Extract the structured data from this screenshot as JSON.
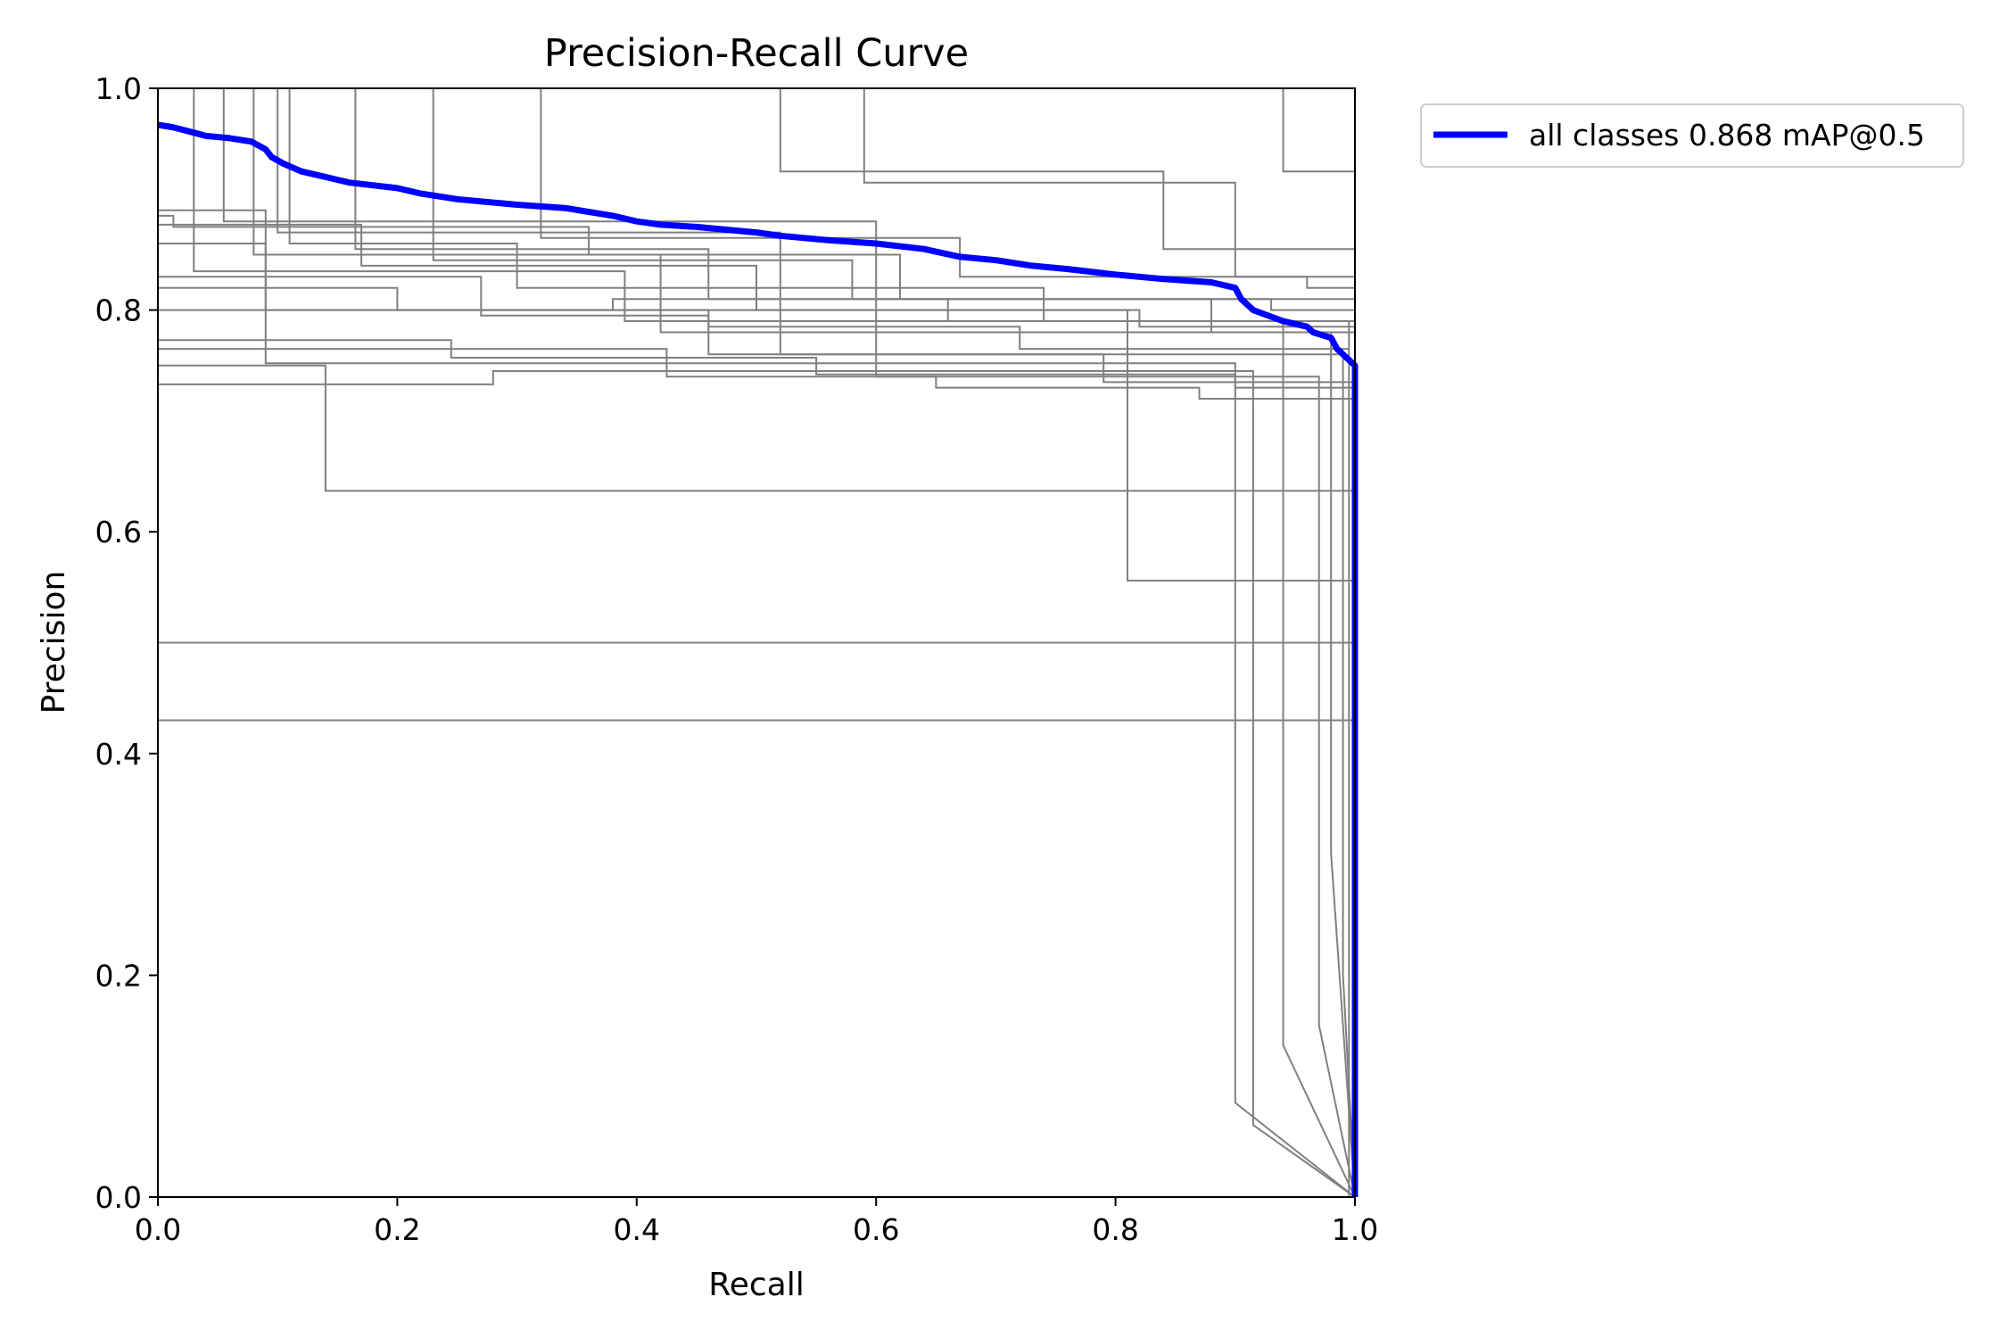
{
  "chart_data": {
    "type": "line",
    "title": "Precision-Recall Curve",
    "xlabel": "Recall",
    "ylabel": "Precision",
    "xlim": [
      0,
      1
    ],
    "ylim": [
      0,
      1
    ],
    "xticks": [
      "0.0",
      "0.2",
      "0.4",
      "0.6",
      "0.8",
      "1.0"
    ],
    "yticks": [
      "0.0",
      "0.2",
      "0.4",
      "0.6",
      "0.8",
      "1.0"
    ],
    "grid": false,
    "legend_position": "outside-top-right",
    "colors": {
      "per_class": "#808080",
      "all_classes": "#0000ff"
    },
    "series": [
      {
        "name": "all classes 0.868 mAP@0.5",
        "color": "#0000ff",
        "x": [
          0.0,
          0.012,
          0.03,
          0.04,
          0.06,
          0.078,
          0.09,
          0.095,
          0.105,
          0.12,
          0.14,
          0.16,
          0.2,
          0.22,
          0.25,
          0.27,
          0.3,
          0.34,
          0.38,
          0.4,
          0.42,
          0.45,
          0.5,
          0.52,
          0.56,
          0.6,
          0.64,
          0.67,
          0.7,
          0.73,
          0.76,
          0.8,
          0.84,
          0.88,
          0.9,
          0.905,
          0.915,
          0.94,
          0.96,
          0.965,
          0.98,
          0.985,
          0.99,
          0.995,
          1.0,
          1.0
        ],
        "y": [
          0.967,
          0.965,
          0.96,
          0.957,
          0.955,
          0.952,
          0.945,
          0.938,
          0.932,
          0.925,
          0.92,
          0.915,
          0.91,
          0.905,
          0.9,
          0.898,
          0.895,
          0.892,
          0.885,
          0.88,
          0.877,
          0.875,
          0.87,
          0.867,
          0.863,
          0.86,
          0.855,
          0.848,
          0.845,
          0.84,
          0.837,
          0.832,
          0.828,
          0.825,
          0.82,
          0.81,
          0.8,
          0.79,
          0.785,
          0.78,
          0.775,
          0.765,
          0.76,
          0.755,
          0.75,
          0.0
        ]
      }
    ],
    "per_class_curves": [
      {
        "x": [
          0,
          0.14,
          0.14,
          1.0,
          1.0
        ],
        "y": [
          0.75,
          0.75,
          0.637,
          0.637,
          0.0
        ]
      },
      {
        "x": [
          0,
          1.0,
          1.0
        ],
        "y": [
          0.5,
          0.5,
          0.0
        ]
      },
      {
        "x": [
          0,
          1.0,
          1.0
        ],
        "y": [
          0.43,
          0.43,
          0.0
        ]
      },
      {
        "x": [
          0,
          0.81,
          0.81,
          1.0,
          1.0
        ],
        "y": [
          0.8,
          0.8,
          0.556,
          0.556,
          0.0
        ]
      },
      {
        "x": [
          0,
          0.09,
          0.09,
          0.9,
          0.9,
          1.0
        ],
        "y": [
          0.89,
          0.89,
          0.752,
          0.752,
          0.085,
          0.0
        ]
      },
      {
        "x": [
          0,
          0.0,
          0.28,
          0.28,
          0.915,
          0.915,
          1.0
        ],
        "y": [
          1.0,
          0.733,
          0.733,
          0.745,
          0.745,
          0.065,
          0.0
        ]
      },
      {
        "x": [
          0,
          0.03,
          0.03,
          0.39,
          0.39,
          0.94,
          0.94,
          1.0
        ],
        "y": [
          1.0,
          1.0,
          0.835,
          0.835,
          0.79,
          0.79,
          0.137,
          0.0
        ]
      },
      {
        "x": [
          0,
          0.055,
          0.055,
          0.6,
          0.6,
          0.97,
          0.97,
          1.0
        ],
        "y": [
          1.0,
          1.0,
          0.88,
          0.88,
          0.74,
          0.74,
          0.155,
          0.0
        ]
      },
      {
        "x": [
          0,
          0.08,
          0.08,
          0.42,
          0.42,
          0.98,
          0.98,
          1.0
        ],
        "y": [
          1.0,
          1.0,
          0.85,
          0.85,
          0.78,
          0.78,
          0.31,
          0.0
        ]
      },
      {
        "x": [
          0,
          0.1,
          0.1,
          0.52,
          0.52,
          0.99,
          0.99,
          1.0
        ],
        "y": [
          1.0,
          1.0,
          0.87,
          0.87,
          0.76,
          0.76,
          0.2,
          0.0
        ]
      },
      {
        "x": [
          0,
          0.11,
          0.11,
          0.3,
          0.3,
          0.74,
          0.74,
          0.995,
          0.995
        ],
        "y": [
          1.0,
          1.0,
          0.86,
          0.86,
          0.82,
          0.82,
          0.79,
          0.79,
          0.0
        ]
      },
      {
        "x": [
          0,
          0.165,
          0.165,
          0.46,
          0.46,
          0.88,
          0.88,
          1.0
        ],
        "y": [
          1.0,
          1.0,
          0.855,
          0.855,
          0.81,
          0.81,
          0.78,
          0.78
        ]
      },
      {
        "x": [
          0,
          0.23,
          0.23,
          0.58,
          0.58,
          0.93,
          0.93,
          1.0
        ],
        "y": [
          1.0,
          1.0,
          0.845,
          0.845,
          0.81,
          0.81,
          0.8,
          0.8
        ]
      },
      {
        "x": [
          0,
          0.32,
          0.32,
          0.67,
          0.67,
          0.96,
          0.96,
          1.0
        ],
        "y": [
          1.0,
          1.0,
          0.865,
          0.865,
          0.83,
          0.83,
          0.82,
          0.82
        ]
      },
      {
        "x": [
          0,
          0.52,
          0.52,
          0.84,
          0.84,
          1.0
        ],
        "y": [
          1.0,
          1.0,
          0.925,
          0.925,
          0.855,
          0.855
        ]
      },
      {
        "x": [
          0,
          0.59,
          0.59,
          0.9,
          0.9,
          1.0
        ],
        "y": [
          1.0,
          1.0,
          0.915,
          0.915,
          0.83,
          0.83
        ]
      },
      {
        "x": [
          0,
          0.94,
          0.94,
          1.0
        ],
        "y": [
          1.0,
          1.0,
          0.925,
          0.925
        ]
      },
      {
        "x": [
          0,
          0.013,
          0.013,
          0.36,
          0.36,
          0.62,
          0.62,
          1.0
        ],
        "y": [
          0.885,
          0.885,
          0.875,
          0.875,
          0.85,
          0.85,
          0.81,
          0.81
        ]
      },
      {
        "x": [
          0,
          0.17,
          0.17,
          0.5,
          0.5,
          0.82,
          0.82,
          1.0
        ],
        "y": [
          0.877,
          0.877,
          0.84,
          0.84,
          0.8,
          0.8,
          0.785,
          0.785
        ]
      },
      {
        "x": [
          0,
          0.245,
          0.245,
          0.55,
          0.55,
          0.9,
          0.9,
          1.0
        ],
        "y": [
          0.773,
          0.773,
          0.757,
          0.757,
          0.742,
          0.742,
          0.73,
          0.73
        ]
      },
      {
        "x": [
          0,
          0.425,
          0.425,
          0.65,
          0.65,
          0.87,
          0.87,
          1.0
        ],
        "y": [
          0.765,
          0.765,
          0.74,
          0.74,
          0.73,
          0.73,
          0.72,
          0.72
        ]
      },
      {
        "x": [
          0,
          0.27,
          0.27,
          0.46,
          0.46,
          0.72,
          0.72,
          0.995
        ],
        "y": [
          0.83,
          0.83,
          0.795,
          0.795,
          0.785,
          0.785,
          0.765,
          0.765
        ]
      },
      {
        "x": [
          0,
          0.09,
          0.09,
          0.38,
          0.38,
          0.66,
          0.66,
          1.0
        ],
        "y": [
          0.86,
          0.86,
          0.8,
          0.8,
          0.81,
          0.81,
          0.79,
          0.79
        ]
      },
      {
        "x": [
          0,
          0.2,
          0.2,
          0.46,
          0.46,
          0.79,
          0.79,
          1.0
        ],
        "y": [
          0.82,
          0.82,
          0.8,
          0.8,
          0.76,
          0.76,
          0.735,
          0.735
        ]
      }
    ]
  }
}
